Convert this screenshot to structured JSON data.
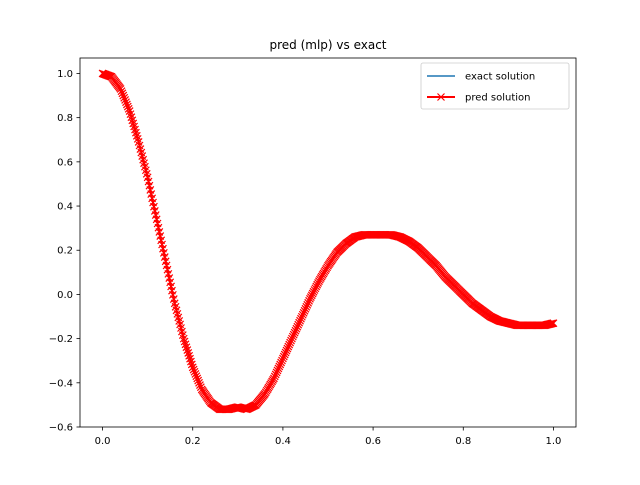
{
  "chart_data": {
    "type": "line",
    "title": "pred (mlp) vs exact",
    "xlabel": "",
    "ylabel": "",
    "xlim": [
      -0.05,
      1.05
    ],
    "ylim": [
      -0.6,
      1.07
    ],
    "xticks": [
      0.0,
      0.2,
      0.4,
      0.6,
      0.8,
      1.0
    ],
    "xtick_labels": [
      "0.0",
      "0.2",
      "0.4",
      "0.6",
      "0.8",
      "1.0"
    ],
    "yticks": [
      -0.6,
      -0.4,
      -0.2,
      0.0,
      0.2,
      0.4,
      0.6,
      0.8,
      1.0
    ],
    "ytick_labels": [
      "−0.6",
      "−0.4",
      "−0.2",
      "0.0",
      "0.2",
      "0.4",
      "0.6",
      "0.8",
      "1.0"
    ],
    "grid": false,
    "legend_position": "top-right",
    "series": [
      {
        "name": "exact solution",
        "color": "#1f77b4",
        "style": "line",
        "x": [
          0.0,
          0.02,
          0.04,
          0.06,
          0.08,
          0.1,
          0.12,
          0.14,
          0.16,
          0.18,
          0.2,
          0.22,
          0.24,
          0.26,
          0.28,
          0.3,
          0.32,
          0.34,
          0.36,
          0.38,
          0.4,
          0.42,
          0.44,
          0.46,
          0.48,
          0.5,
          0.52,
          0.54,
          0.56,
          0.58,
          0.6,
          0.62,
          0.64,
          0.66,
          0.68,
          0.7,
          0.72,
          0.74,
          0.76,
          0.78,
          0.8,
          0.82,
          0.84,
          0.86,
          0.88,
          0.9,
          0.92,
          0.94,
          0.96,
          0.98,
          1.0
        ],
        "y": [
          1.0,
          0.985,
          0.93,
          0.83,
          0.69,
          0.53,
          0.34,
          0.15,
          -0.04,
          -0.2,
          -0.33,
          -0.43,
          -0.49,
          -0.52,
          -0.52,
          -0.51,
          -0.52,
          -0.5,
          -0.45,
          -0.38,
          -0.29,
          -0.2,
          -0.11,
          -0.02,
          0.06,
          0.13,
          0.19,
          0.23,
          0.26,
          0.27,
          0.27,
          0.27,
          0.27,
          0.26,
          0.24,
          0.21,
          0.17,
          0.13,
          0.08,
          0.04,
          0.0,
          -0.04,
          -0.07,
          -0.1,
          -0.12,
          -0.13,
          -0.14,
          -0.14,
          -0.14,
          -0.14,
          -0.13
        ]
      },
      {
        "name": "pred solution",
        "color": "#ff0000",
        "style": "line+x-marker",
        "x": [
          0.0,
          0.02,
          0.04,
          0.06,
          0.08,
          0.1,
          0.12,
          0.14,
          0.16,
          0.18,
          0.2,
          0.22,
          0.24,
          0.26,
          0.28,
          0.3,
          0.32,
          0.34,
          0.36,
          0.38,
          0.4,
          0.42,
          0.44,
          0.46,
          0.48,
          0.5,
          0.52,
          0.54,
          0.56,
          0.58,
          0.6,
          0.62,
          0.64,
          0.66,
          0.68,
          0.7,
          0.72,
          0.74,
          0.76,
          0.78,
          0.8,
          0.82,
          0.84,
          0.86,
          0.88,
          0.9,
          0.92,
          0.94,
          0.96,
          0.98,
          1.0
        ],
        "y": [
          1.0,
          0.985,
          0.93,
          0.83,
          0.69,
          0.53,
          0.34,
          0.15,
          -0.04,
          -0.2,
          -0.33,
          -0.43,
          -0.49,
          -0.52,
          -0.52,
          -0.51,
          -0.52,
          -0.5,
          -0.45,
          -0.38,
          -0.29,
          -0.2,
          -0.11,
          -0.02,
          0.06,
          0.13,
          0.19,
          0.23,
          0.26,
          0.27,
          0.27,
          0.27,
          0.27,
          0.26,
          0.24,
          0.21,
          0.17,
          0.13,
          0.08,
          0.04,
          0.0,
          -0.04,
          -0.07,
          -0.1,
          -0.12,
          -0.13,
          -0.14,
          -0.14,
          -0.14,
          -0.14,
          -0.13
        ]
      }
    ]
  }
}
